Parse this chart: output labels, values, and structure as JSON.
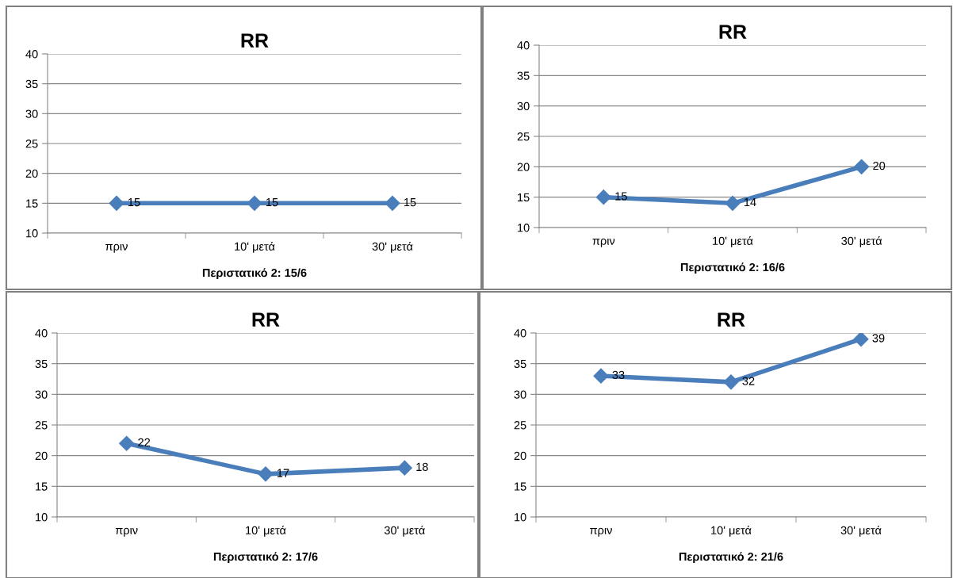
{
  "chart_data": [
    {
      "type": "line",
      "title": "RR",
      "xlabel": "Περιστατικό 2: 15/6",
      "categories": [
        "πριν",
        "10' μετά",
        "30' μετά"
      ],
      "series": [
        {
          "color": "#4a7ebb",
          "values": [
            15,
            15,
            15
          ]
        }
      ],
      "ylim": [
        10,
        40
      ],
      "yticks": [
        10,
        15,
        20,
        25,
        30,
        35,
        40
      ],
      "grid": "y",
      "marker": "diamond",
      "line_style": "solid",
      "data_labels": true,
      "legend": false
    },
    {
      "type": "line",
      "title": "RR",
      "xlabel": "Περιστατικό 2: 16/6",
      "categories": [
        "πριν",
        "10' μετά",
        "30' μετά"
      ],
      "series": [
        {
          "color": "#4a7ebb",
          "values": [
            15,
            14,
            20
          ]
        }
      ],
      "ylim": [
        10,
        40
      ],
      "yticks": [
        10,
        15,
        20,
        25,
        30,
        35,
        40
      ],
      "grid": "y",
      "marker": "diamond",
      "line_style": "solid",
      "data_labels": true,
      "legend": false
    },
    {
      "type": "line",
      "title": "RR",
      "xlabel": "Περιστατικό 2: 17/6",
      "categories": [
        "πριν",
        "10' μετά",
        "30' μετά"
      ],
      "series": [
        {
          "color": "#4a7ebb",
          "values": [
            22,
            17,
            18
          ]
        }
      ],
      "ylim": [
        10,
        40
      ],
      "yticks": [
        10,
        15,
        20,
        25,
        30,
        35,
        40
      ],
      "grid": "y",
      "marker": "diamond",
      "line_style": "solid",
      "data_labels": true,
      "legend": false
    },
    {
      "type": "line",
      "title": "RR",
      "xlabel": "Περιστατικό 2: 21/6",
      "categories": [
        "πριν",
        "10' μετά",
        "30' μετά"
      ],
      "series": [
        {
          "color": "#4a7ebb",
          "values": [
            33,
            32,
            39
          ]
        }
      ],
      "ylim": [
        10,
        40
      ],
      "yticks": [
        10,
        15,
        20,
        25,
        30,
        35,
        40
      ],
      "grid": "y",
      "marker": "diamond",
      "line_style": "solid",
      "data_labels": true,
      "legend": false
    }
  ]
}
